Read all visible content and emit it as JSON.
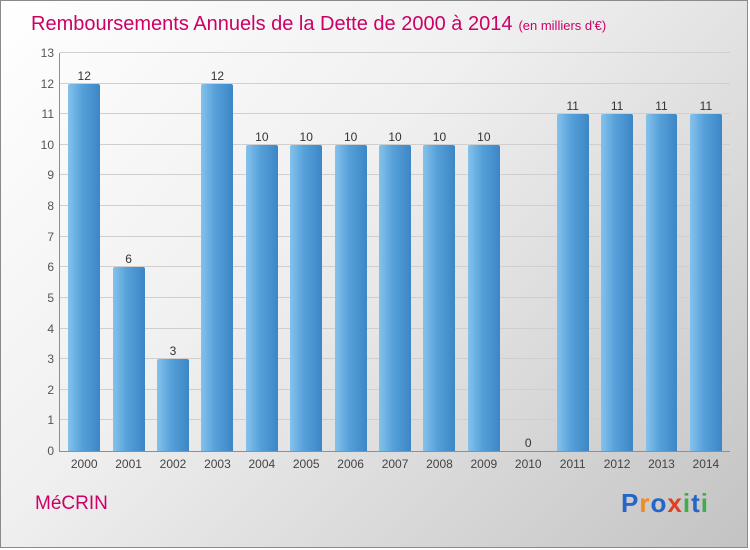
{
  "header": {
    "title": "Remboursements Annuels de la Dette de 2000 à 2014",
    "subtitle": "(en milliers d'€)"
  },
  "footer": {
    "org": "MéCRIN"
  },
  "logo": {
    "name": "Proxiti",
    "letters": [
      {
        "ch": "P",
        "color": "#2565c7"
      },
      {
        "ch": "r",
        "color": "#f08c1e"
      },
      {
        "ch": "o",
        "color": "#2565c7"
      },
      {
        "ch": "x",
        "color": "#e03e1f"
      },
      {
        "ch": "i",
        "color": "#3fae49"
      },
      {
        "ch": "t",
        "color": "#2565c7"
      },
      {
        "ch": "i",
        "color": "#3fae49"
      }
    ]
  },
  "colors": {
    "title": "#cc0066",
    "bar_gradient_start": "#85c2ec",
    "bar_gradient_end": "#3d86c6",
    "gridline": "#cfcfcf",
    "axis": "#8f8f8f"
  },
  "chart_data": {
    "type": "bar",
    "title": "Remboursements Annuels de la Dette de 2000 à 2014",
    "subtitle": "(en milliers d'€)",
    "categories": [
      "2000",
      "2001",
      "2002",
      "2003",
      "2004",
      "2005",
      "2006",
      "2007",
      "2008",
      "2009",
      "2010",
      "2011",
      "2012",
      "2013",
      "2014"
    ],
    "values": [
      12,
      6,
      3,
      12,
      10,
      10,
      10,
      10,
      10,
      10,
      0,
      11,
      11,
      11,
      11
    ],
    "xlabel": "",
    "ylabel": "",
    "ylim": [
      0,
      13
    ],
    "ytick_step": 1,
    "grid": true,
    "legend_position": "none",
    "value_labels": true
  }
}
